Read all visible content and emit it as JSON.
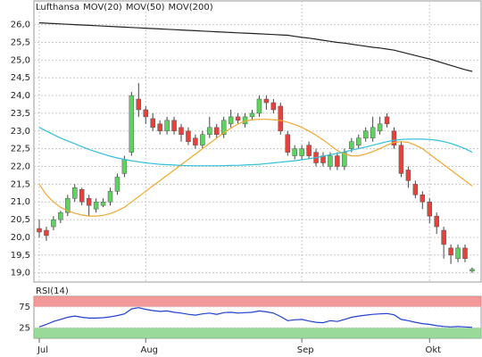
{
  "chart_data": [
    {
      "type": "candlestick",
      "categories": [
        "Jul",
        null,
        null,
        null,
        null,
        null,
        null,
        null,
        null,
        null,
        null,
        null,
        null,
        null,
        null,
        "Aug",
        null,
        null,
        null,
        null,
        null,
        null,
        null,
        null,
        null,
        null,
        null,
        null,
        null,
        null,
        null,
        null,
        null,
        null,
        null,
        null,
        null,
        "Sep",
        null,
        null,
        null,
        null,
        null,
        null,
        null,
        null,
        null,
        null,
        null,
        null,
        null,
        null,
        null,
        null,
        null,
        "Okt",
        null,
        null,
        null,
        null,
        null,
        null
      ],
      "series": [
        {
          "name": "Lufthansa",
          "color": "#999999",
          "up_color": "#5fd35f",
          "down_color": "#e8413c",
          "open": [
            20.25,
            20.2,
            20.3,
            20.5,
            20.7,
            21.1,
            21.35,
            21.1,
            20.8,
            20.9,
            21.0,
            21.3,
            21.8,
            22.4,
            23.9,
            23.6,
            23.35,
            23.2,
            23.0,
            23.3,
            23.1,
            23.0,
            22.8,
            22.6,
            22.9,
            23.1,
            22.9,
            23.2,
            23.4,
            23.2,
            23.4,
            23.5,
            23.9,
            23.8,
            23.7,
            22.9,
            22.3,
            22.3,
            22.6,
            22.4,
            22.3,
            22.0,
            22.3,
            22.0,
            22.5,
            22.6,
            22.8,
            22.8,
            23.0,
            23.4,
            23.0,
            22.6,
            21.9,
            21.5,
            21.2,
            21.0,
            20.6,
            20.2,
            19.7,
            19.4,
            19.7,
            19.05
          ],
          "high": [
            20.5,
            20.3,
            20.6,
            20.75,
            21.2,
            21.5,
            21.4,
            21.2,
            21.1,
            21.1,
            21.4,
            21.8,
            22.3,
            24.1,
            24.35,
            23.7,
            23.5,
            23.3,
            23.4,
            23.4,
            23.2,
            23.1,
            22.9,
            23.0,
            23.4,
            23.2,
            23.4,
            23.6,
            23.5,
            23.5,
            23.6,
            24.0,
            24.0,
            23.9,
            23.8,
            23.0,
            22.6,
            22.6,
            22.7,
            22.5,
            22.4,
            22.4,
            22.4,
            22.5,
            22.8,
            22.9,
            23.1,
            23.4,
            23.4,
            23.5,
            23.1,
            22.7,
            22.0,
            21.6,
            21.3,
            21.1,
            20.7,
            20.3,
            19.8,
            19.8,
            19.8,
            19.15
          ],
          "low": [
            20.0,
            19.9,
            20.2,
            20.4,
            20.6,
            21.0,
            20.9,
            20.6,
            20.7,
            20.85,
            20.9,
            21.2,
            21.7,
            22.3,
            23.4,
            23.2,
            23.0,
            22.9,
            22.9,
            22.9,
            22.7,
            22.6,
            22.5,
            22.5,
            22.8,
            22.8,
            22.8,
            23.1,
            23.2,
            23.1,
            23.3,
            23.4,
            23.6,
            23.5,
            22.9,
            22.3,
            22.2,
            22.2,
            22.2,
            22.0,
            22.0,
            21.9,
            21.9,
            21.9,
            22.4,
            22.5,
            22.7,
            22.7,
            22.9,
            23.1,
            22.5,
            21.7,
            21.4,
            21.1,
            20.8,
            20.4,
            20.1,
            19.4,
            19.25,
            19.3,
            19.3,
            19.0
          ],
          "close": [
            20.15,
            20.05,
            20.5,
            20.7,
            21.1,
            21.4,
            21.0,
            20.9,
            21.0,
            21.0,
            21.3,
            21.7,
            22.2,
            24.0,
            23.6,
            23.4,
            23.1,
            23.0,
            23.3,
            23.0,
            22.9,
            22.7,
            22.6,
            22.9,
            23.1,
            22.9,
            23.3,
            23.4,
            23.3,
            23.4,
            23.5,
            23.9,
            23.8,
            23.6,
            23.0,
            22.4,
            22.5,
            22.5,
            22.3,
            22.1,
            22.1,
            22.3,
            22.0,
            22.4,
            22.7,
            22.8,
            23.0,
            23.1,
            23.2,
            23.2,
            22.6,
            21.8,
            21.6,
            21.2,
            21.0,
            20.6,
            20.3,
            19.8,
            19.5,
            19.7,
            19.4,
            19.1
          ]
        },
        {
          "name": "MOV(20)",
          "type": "line",
          "color": "#f0a830",
          "values": [
            21.5,
            21.2,
            21.0,
            20.85,
            20.75,
            20.68,
            20.63,
            20.6,
            20.6,
            20.62,
            20.67,
            20.75,
            20.85,
            21.0,
            21.15,
            21.3,
            21.45,
            21.6,
            21.75,
            21.9,
            22.05,
            22.2,
            22.35,
            22.5,
            22.65,
            22.8,
            22.95,
            23.08,
            23.2,
            23.28,
            23.32,
            23.33,
            23.33,
            23.32,
            23.3,
            23.25,
            23.18,
            23.1,
            23.0,
            22.88,
            22.75,
            22.6,
            22.45,
            22.35,
            22.3,
            22.3,
            22.35,
            22.42,
            22.5,
            22.6,
            22.68,
            22.7,
            22.68,
            22.6,
            22.5,
            22.35,
            22.2,
            22.05,
            21.9,
            21.75,
            21.6,
            21.45
          ]
        },
        {
          "name": "MOV(50)",
          "type": "line",
          "color": "#30c0d8",
          "values": [
            23.1,
            23.0,
            22.9,
            22.8,
            22.72,
            22.64,
            22.56,
            22.48,
            22.41,
            22.35,
            22.29,
            22.24,
            22.2,
            22.16,
            22.13,
            22.1,
            22.08,
            22.06,
            22.05,
            22.04,
            22.03,
            22.02,
            22.02,
            22.02,
            22.02,
            22.02,
            22.02,
            22.03,
            22.03,
            22.04,
            22.05,
            22.06,
            22.08,
            22.1,
            22.12,
            22.14,
            22.16,
            22.19,
            22.22,
            22.25,
            22.29,
            22.33,
            22.37,
            22.41,
            22.46,
            22.5,
            22.55,
            22.6,
            22.65,
            22.7,
            22.74,
            22.76,
            22.77,
            22.77,
            22.77,
            22.76,
            22.74,
            22.7,
            22.65,
            22.58,
            22.5,
            22.4
          ]
        },
        {
          "name": "MOV(200)",
          "type": "line",
          "color": "#222222",
          "values": [
            26.05,
            26.04,
            26.03,
            26.02,
            26.01,
            26.0,
            25.99,
            25.98,
            25.97,
            25.96,
            25.95,
            25.94,
            25.93,
            25.92,
            25.91,
            25.9,
            25.89,
            25.88,
            25.87,
            25.86,
            25.85,
            25.84,
            25.83,
            25.82,
            25.81,
            25.8,
            25.79,
            25.78,
            25.77,
            25.76,
            25.75,
            25.74,
            25.73,
            25.72,
            25.71,
            25.7,
            25.67,
            25.64,
            25.62,
            25.59,
            25.56,
            25.53,
            25.5,
            25.48,
            25.45,
            25.42,
            25.39,
            25.36,
            25.34,
            25.31,
            25.28,
            25.23,
            25.18,
            25.13,
            25.08,
            25.03,
            24.97,
            24.91,
            24.85,
            24.79,
            24.73,
            24.68
          ]
        }
      ],
      "ylim": [
        18.74,
        26.67
      ],
      "yticks": [
        {
          "value": 19,
          "label": "19,0"
        },
        {
          "value": 19.5,
          "label": "19,5"
        },
        {
          "value": 20,
          "label": "20,0"
        },
        {
          "value": 20.5,
          "label": "20,5"
        },
        {
          "value": 21,
          "label": "21,0"
        },
        {
          "value": 21.5,
          "label": "21,5"
        },
        {
          "value": 22,
          "label": "22,0"
        },
        {
          "value": 22.5,
          "label": "22,5"
        },
        {
          "value": 23,
          "label": "23,0"
        },
        {
          "value": 23.5,
          "label": "23,5"
        },
        {
          "value": 24,
          "label": "24,0"
        },
        {
          "value": 24.5,
          "label": "24,5"
        },
        {
          "value": 25,
          "label": "25,0"
        },
        {
          "value": 25.5,
          "label": "25,5"
        },
        {
          "value": 26,
          "label": "26,0"
        }
      ],
      "grid": true
    },
    {
      "type": "line",
      "title": "RSI(14)",
      "series": [
        {
          "color": "#2040d0",
          "values": [
            27,
            33,
            40,
            45,
            50,
            53,
            50,
            48,
            48,
            49,
            51,
            54,
            58,
            70,
            73,
            69,
            66,
            64,
            65,
            62,
            60,
            57,
            55,
            58,
            60,
            57,
            61,
            62,
            60,
            61,
            62,
            65,
            63,
            60,
            52,
            42,
            44,
            45,
            41,
            38,
            37,
            42,
            40,
            45,
            50,
            53,
            55,
            57,
            58,
            59,
            56,
            45,
            42,
            38,
            35,
            33,
            30,
            28,
            27,
            28,
            27,
            26
          ]
        }
      ],
      "ylim": [
        0,
        100
      ],
      "yticks": [
        25,
        75
      ],
      "upper_band_color": "#f08080",
      "lower_band_color": "#80d080",
      "grid": true
    }
  ]
}
